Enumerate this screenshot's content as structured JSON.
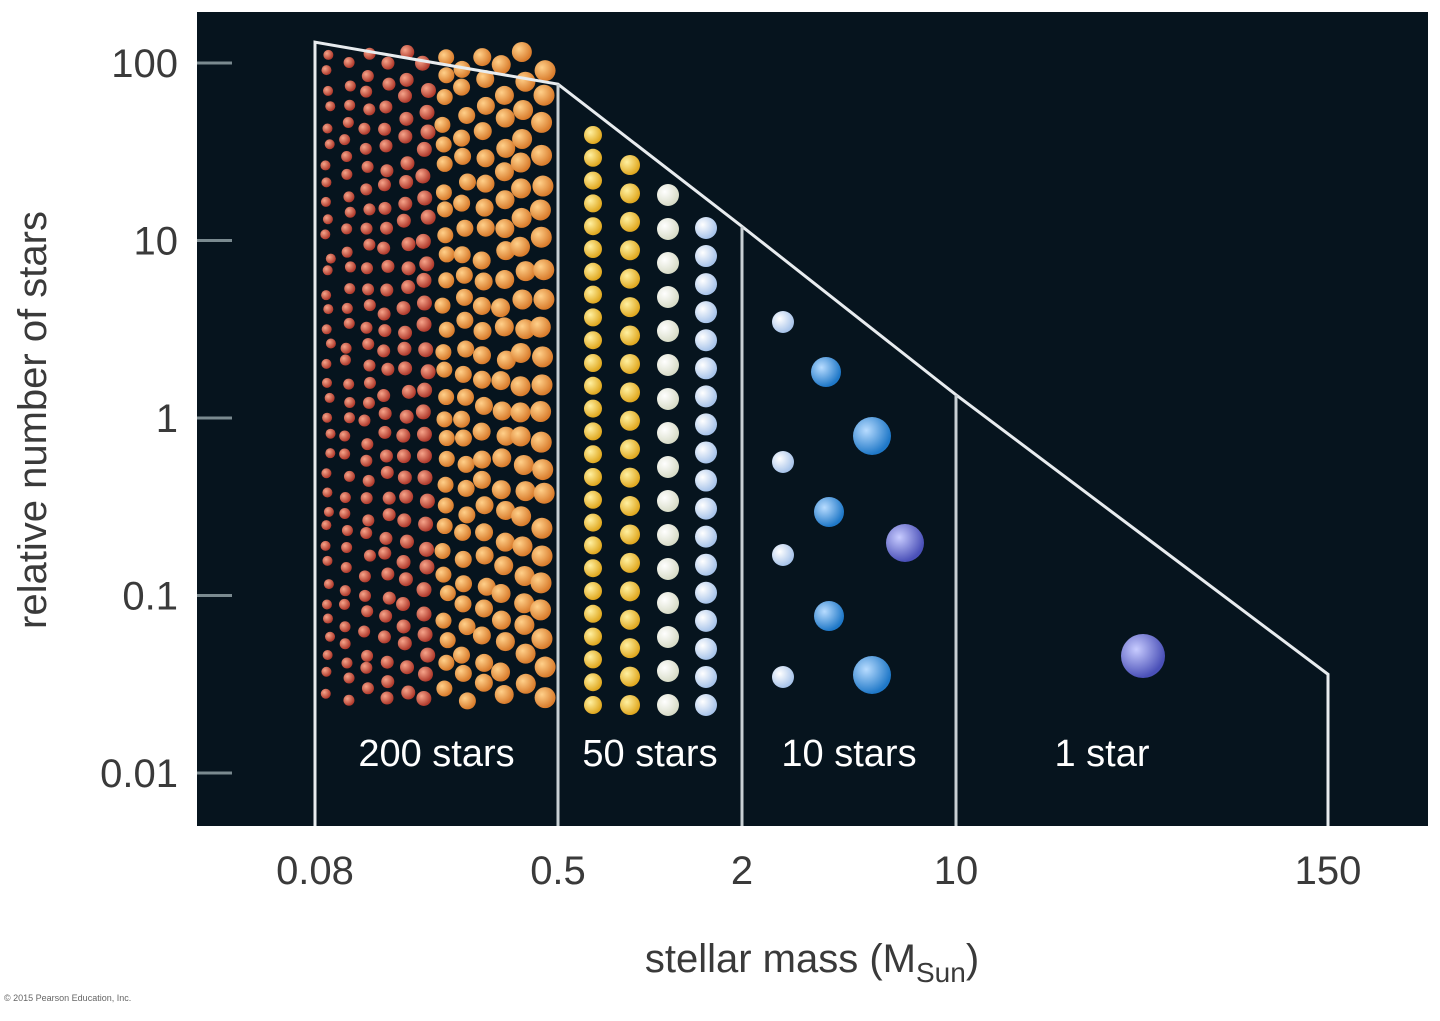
{
  "chart_data": {
    "type": "diagram",
    "xlabel": "stellar mass (M",
    "xlabel_sub": "Sun",
    "xlabel_close": ")",
    "ylabel": "relative number of stars",
    "x_scale": "log",
    "y_scale": "log",
    "x_ticks": [
      {
        "value": 0.08,
        "label": "0.08"
      },
      {
        "value": 0.5,
        "label": "0.5"
      },
      {
        "value": 2,
        "label": "2"
      },
      {
        "value": 10,
        "label": "10"
      },
      {
        "value": 150,
        "label": "150"
      }
    ],
    "y_ticks": [
      {
        "value": 100,
        "label": "100"
      },
      {
        "value": 10,
        "label": "10"
      },
      {
        "value": 1,
        "label": "1"
      },
      {
        "value": 0.1,
        "label": "0.1"
      },
      {
        "value": 0.01,
        "label": "0.01"
      }
    ],
    "ylim": [
      0.005,
      300
    ],
    "mass_function_curve": [
      {
        "mass": 0.08,
        "n": 131
      },
      {
        "mass": 0.5,
        "n": 76
      },
      {
        "mass": 2,
        "n": 12
      },
      {
        "mass": 10,
        "n": 1.35
      },
      {
        "mass": 150,
        "n": 0.036
      }
    ],
    "bins": [
      {
        "from": 0.08,
        "to": 0.5,
        "label": "200 stars",
        "colors": [
          "#c8503c",
          "#e89a4c"
        ]
      },
      {
        "from": 0.5,
        "to": 2,
        "label": "50 stars",
        "colors": [
          "#f2c640",
          "#f3f0dc"
        ]
      },
      {
        "from": 2,
        "to": 10,
        "label": "10 stars",
        "colors": [
          "#cfe0f5",
          "#2f8fd8"
        ]
      },
      {
        "from": 10,
        "to": 150,
        "label": "1 star",
        "colors": [
          "#6f72d8"
        ]
      }
    ],
    "background": "#06141e",
    "grid": false
  },
  "copyright": "© 2015 Pearson Education, Inc."
}
